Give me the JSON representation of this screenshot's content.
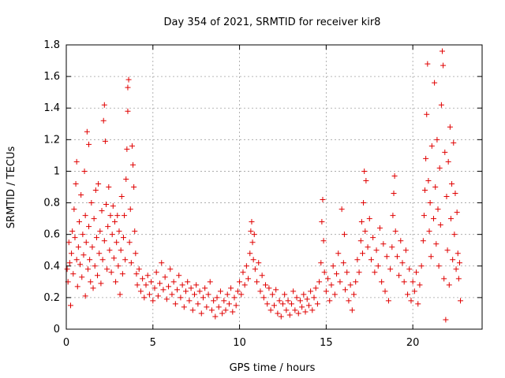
{
  "chart_data": {
    "type": "scatter",
    "title": "Day 354 of 2021, SRMTID for receiver kir8",
    "xlabel": "GPS time / hours",
    "ylabel": "SRMTID / TECUs",
    "xlim": [
      0,
      24
    ],
    "ylim": [
      0,
      1.8
    ],
    "xticks": [
      0,
      5,
      10,
      15,
      20
    ],
    "yticks": [
      0,
      0.2,
      0.4,
      0.6,
      0.8,
      1,
      1.2,
      1.4,
      1.6,
      1.8
    ],
    "ytick_labels": [
      "0",
      "0.2",
      "0.4",
      "0.6",
      "0.8",
      "1",
      "1.2",
      "1.4",
      "1.6",
      "1.8"
    ],
    "grid": true,
    "marker": "+",
    "marker_color": "#e00000",
    "series": [
      {
        "name": "SRMTID",
        "points": [
          [
            0.05,
            0.38
          ],
          [
            0.1,
            0.3
          ],
          [
            0.15,
            0.55
          ],
          [
            0.2,
            0.42
          ],
          [
            0.25,
            0.15
          ],
          [
            0.3,
            0.48
          ],
          [
            0.35,
            0.62
          ],
          [
            0.4,
            0.35
          ],
          [
            0.45,
            0.76
          ],
          [
            0.5,
            0.58
          ],
          [
            0.55,
            0.92
          ],
          [
            0.6,
            0.44
          ],
          [
            0.6,
            1.06
          ],
          [
            0.65,
            0.27
          ],
          [
            0.7,
            0.52
          ],
          [
            0.75,
            0.68
          ],
          [
            0.8,
            0.41
          ],
          [
            0.85,
            0.85
          ],
          [
            0.9,
            0.33
          ],
          [
            0.95,
            0.6
          ],
          [
            1.0,
            0.47
          ],
          [
            1.05,
            1.0
          ],
          [
            1.1,
            0.72
          ],
          [
            1.1,
            0.21
          ],
          [
            1.15,
            0.55
          ],
          [
            1.2,
            1.25
          ],
          [
            1.25,
            0.38
          ],
          [
            1.3,
            0.65
          ],
          [
            1.3,
            1.17
          ],
          [
            1.35,
            0.44
          ],
          [
            1.4,
            0.3
          ],
          [
            1.45,
            0.8
          ],
          [
            1.5,
            0.52
          ],
          [
            1.55,
            0.26
          ],
          [
            1.6,
            0.7
          ],
          [
            1.65,
            0.4
          ],
          [
            1.7,
            0.88
          ],
          [
            1.75,
            0.58
          ],
          [
            1.8,
            0.34
          ],
          [
            1.85,
            0.92
          ],
          [
            1.9,
            0.48
          ],
          [
            1.95,
            0.62
          ],
          [
            2.0,
            0.29
          ],
          [
            2.05,
            0.75
          ],
          [
            2.1,
            0.44
          ],
          [
            2.15,
            1.32
          ],
          [
            2.2,
            1.42
          ],
          [
            2.2,
            0.56
          ],
          [
            2.25,
            1.19
          ],
          [
            2.3,
            0.79
          ],
          [
            2.35,
            0.38
          ],
          [
            2.4,
            0.65
          ],
          [
            2.45,
            0.9
          ],
          [
            2.5,
            0.5
          ],
          [
            2.55,
            0.72
          ],
          [
            2.6,
            0.36
          ],
          [
            2.65,
            0.6
          ],
          [
            2.7,
            0.78
          ],
          [
            2.75,
            0.45
          ],
          [
            2.8,
            0.68
          ],
          [
            2.85,
            0.3
          ],
          [
            2.9,
            0.55
          ],
          [
            2.95,
            0.72
          ],
          [
            3.0,
            0.4
          ],
          [
            3.05,
            0.62
          ],
          [
            3.1,
            0.22
          ],
          [
            3.15,
            0.5
          ],
          [
            3.2,
            0.84
          ],
          [
            3.25,
            0.35
          ],
          [
            3.3,
            0.58
          ],
          [
            3.35,
            0.72
          ],
          [
            3.4,
            0.44
          ],
          [
            3.45,
            0.95
          ],
          [
            3.5,
            1.14
          ],
          [
            3.55,
            1.38
          ],
          [
            3.55,
            1.53
          ],
          [
            3.6,
            1.58
          ],
          [
            3.65,
            0.55
          ],
          [
            3.7,
            0.76
          ],
          [
            3.75,
            0.42
          ],
          [
            3.8,
            1.16
          ],
          [
            3.85,
            1.04
          ],
          [
            3.9,
            0.9
          ],
          [
            3.95,
            0.62
          ],
          [
            4.0,
            0.48
          ],
          [
            4.05,
            0.35
          ],
          [
            4.1,
            0.28
          ],
          [
            4.2,
            0.38
          ],
          [
            4.3,
            0.24
          ],
          [
            4.4,
            0.32
          ],
          [
            4.5,
            0.2
          ],
          [
            4.6,
            0.28
          ],
          [
            4.7,
            0.34
          ],
          [
            4.8,
            0.22
          ],
          [
            4.9,
            0.3
          ],
          [
            5.0,
            0.18
          ],
          [
            5.1,
            0.26
          ],
          [
            5.2,
            0.36
          ],
          [
            5.3,
            0.21
          ],
          [
            5.4,
            0.29
          ],
          [
            5.5,
            0.42
          ],
          [
            5.6,
            0.25
          ],
          [
            5.7,
            0.33
          ],
          [
            5.8,
            0.19
          ],
          [
            5.9,
            0.27
          ],
          [
            6.0,
            0.38
          ],
          [
            6.1,
            0.22
          ],
          [
            6.2,
            0.3
          ],
          [
            6.3,
            0.16
          ],
          [
            6.4,
            0.25
          ],
          [
            6.5,
            0.34
          ],
          [
            6.6,
            0.2
          ],
          [
            6.7,
            0.28
          ],
          [
            6.8,
            0.14
          ],
          [
            6.9,
            0.24
          ],
          [
            7.0,
            0.3
          ],
          [
            7.1,
            0.18
          ],
          [
            7.2,
            0.26
          ],
          [
            7.3,
            0.12
          ],
          [
            7.4,
            0.22
          ],
          [
            7.5,
            0.28
          ],
          [
            7.6,
            0.16
          ],
          [
            7.7,
            0.24
          ],
          [
            7.8,
            0.1
          ],
          [
            7.9,
            0.2
          ],
          [
            8.0,
            0.26
          ],
          [
            8.1,
            0.14
          ],
          [
            8.2,
            0.22
          ],
          [
            8.3,
            0.3
          ],
          [
            8.4,
            0.12
          ],
          [
            8.5,
            0.18
          ],
          [
            8.6,
            0.08
          ],
          [
            8.7,
            0.2
          ],
          [
            8.8,
            0.14
          ],
          [
            8.9,
            0.24
          ],
          [
            9.0,
            0.1
          ],
          [
            9.1,
            0.18
          ],
          [
            9.2,
            0.12
          ],
          [
            9.3,
            0.22
          ],
          [
            9.4,
            0.16
          ],
          [
            9.5,
            0.26
          ],
          [
            9.6,
            0.11
          ],
          [
            9.7,
            0.2
          ],
          [
            9.8,
            0.15
          ],
          [
            9.9,
            0.24
          ],
          [
            10.0,
            0.3
          ],
          [
            10.1,
            0.22
          ],
          [
            10.2,
            0.36
          ],
          [
            10.3,
            0.28
          ],
          [
            10.4,
            0.4
          ],
          [
            10.5,
            0.32
          ],
          [
            10.6,
            0.48
          ],
          [
            10.65,
            0.62
          ],
          [
            10.7,
            0.68
          ],
          [
            10.75,
            0.55
          ],
          [
            10.8,
            0.44
          ],
          [
            10.85,
            0.6
          ],
          [
            10.9,
            0.38
          ],
          [
            11.0,
            0.3
          ],
          [
            11.1,
            0.42
          ],
          [
            11.2,
            0.24
          ],
          [
            11.3,
            0.34
          ],
          [
            11.4,
            0.2
          ],
          [
            11.5,
            0.28
          ],
          [
            11.6,
            0.16
          ],
          [
            11.7,
            0.26
          ],
          [
            11.8,
            0.12
          ],
          [
            11.9,
            0.22
          ],
          [
            12.0,
            0.15
          ],
          [
            12.1,
            0.25
          ],
          [
            12.2,
            0.1
          ],
          [
            12.3,
            0.18
          ],
          [
            12.4,
            0.08
          ],
          [
            12.5,
            0.16
          ],
          [
            12.6,
            0.22
          ],
          [
            12.7,
            0.12
          ],
          [
            12.8,
            0.18
          ],
          [
            12.9,
            0.09
          ],
          [
            13.0,
            0.16
          ],
          [
            13.1,
            0.24
          ],
          [
            13.2,
            0.12
          ],
          [
            13.3,
            0.2
          ],
          [
            13.4,
            0.1
          ],
          [
            13.5,
            0.18
          ],
          [
            13.6,
            0.14
          ],
          [
            13.7,
            0.22
          ],
          [
            13.8,
            0.11
          ],
          [
            13.9,
            0.19
          ],
          [
            14.0,
            0.15
          ],
          [
            14.1,
            0.24
          ],
          [
            14.2,
            0.12
          ],
          [
            14.3,
            0.2
          ],
          [
            14.4,
            0.26
          ],
          [
            14.5,
            0.16
          ],
          [
            14.6,
            0.3
          ],
          [
            14.7,
            0.42
          ],
          [
            14.75,
            0.68
          ],
          [
            14.8,
            0.82
          ],
          [
            14.85,
            0.56
          ],
          [
            14.9,
            0.36
          ],
          [
            15.0,
            0.24
          ],
          [
            15.1,
            0.32
          ],
          [
            15.2,
            0.18
          ],
          [
            15.3,
            0.28
          ],
          [
            15.4,
            0.4
          ],
          [
            15.5,
            0.22
          ],
          [
            15.6,
            0.35
          ],
          [
            15.7,
            0.48
          ],
          [
            15.8,
            0.3
          ],
          [
            15.9,
            0.76
          ],
          [
            16.0,
            0.42
          ],
          [
            16.05,
            0.6
          ],
          [
            16.1,
            0.25
          ],
          [
            16.2,
            0.36
          ],
          [
            16.3,
            0.18
          ],
          [
            16.4,
            0.28
          ],
          [
            16.5,
            0.12
          ],
          [
            16.6,
            0.22
          ],
          [
            16.7,
            0.3
          ],
          [
            16.8,
            0.44
          ],
          [
            16.9,
            0.36
          ],
          [
            17.0,
            0.56
          ],
          [
            17.05,
            0.68
          ],
          [
            17.1,
            0.48
          ],
          [
            17.15,
            0.8
          ],
          [
            17.2,
            1.0
          ],
          [
            17.25,
            0.62
          ],
          [
            17.3,
            0.94
          ],
          [
            17.4,
            0.52
          ],
          [
            17.5,
            0.7
          ],
          [
            17.6,
            0.44
          ],
          [
            17.7,
            0.58
          ],
          [
            17.8,
            0.36
          ],
          [
            17.9,
            0.5
          ],
          [
            18.0,
            0.4
          ],
          [
            18.1,
            0.64
          ],
          [
            18.2,
            0.3
          ],
          [
            18.3,
            0.54
          ],
          [
            18.4,
            0.24
          ],
          [
            18.5,
            0.46
          ],
          [
            18.6,
            0.18
          ],
          [
            18.7,
            0.38
          ],
          [
            18.8,
            0.52
          ],
          [
            18.85,
            0.72
          ],
          [
            18.9,
            0.86
          ],
          [
            18.95,
            0.97
          ],
          [
            19.0,
            0.62
          ],
          [
            19.1,
            0.46
          ],
          [
            19.2,
            0.34
          ],
          [
            19.3,
            0.56
          ],
          [
            19.4,
            0.42
          ],
          [
            19.5,
            0.3
          ],
          [
            19.6,
            0.5
          ],
          [
            19.7,
            0.22
          ],
          [
            19.8,
            0.38
          ],
          [
            19.9,
            0.18
          ],
          [
            20.0,
            0.3
          ],
          [
            20.1,
            0.24
          ],
          [
            20.2,
            0.36
          ],
          [
            20.3,
            0.16
          ],
          [
            20.4,
            0.28
          ],
          [
            20.5,
            0.4
          ],
          [
            20.6,
            0.56
          ],
          [
            20.65,
            0.72
          ],
          [
            20.7,
            0.88
          ],
          [
            20.75,
            1.08
          ],
          [
            20.8,
            1.36
          ],
          [
            20.85,
            1.68
          ],
          [
            20.9,
            0.94
          ],
          [
            20.95,
            0.62
          ],
          [
            21.0,
            0.8
          ],
          [
            21.05,
            0.46
          ],
          [
            21.1,
            1.16
          ],
          [
            21.2,
            0.7
          ],
          [
            21.25,
            1.56
          ],
          [
            21.3,
            0.9
          ],
          [
            21.35,
            0.54
          ],
          [
            21.4,
            1.2
          ],
          [
            21.45,
            0.76
          ],
          [
            21.5,
            0.4
          ],
          [
            21.55,
            1.02
          ],
          [
            21.6,
            0.66
          ],
          [
            21.65,
            1.42
          ],
          [
            21.7,
            1.76
          ],
          [
            21.75,
            1.67
          ],
          [
            21.8,
            0.32
          ],
          [
            21.85,
            1.12
          ],
          [
            21.9,
            0.06
          ],
          [
            21.95,
            0.84
          ],
          [
            22.0,
            0.5
          ],
          [
            22.05,
            1.06
          ],
          [
            22.1,
            0.28
          ],
          [
            22.15,
            1.28
          ],
          [
            22.2,
            0.7
          ],
          [
            22.25,
            0.92
          ],
          [
            22.3,
            0.44
          ],
          [
            22.35,
            1.18
          ],
          [
            22.4,
            0.6
          ],
          [
            22.45,
            0.86
          ],
          [
            22.5,
            0.38
          ],
          [
            22.55,
            0.74
          ],
          [
            22.6,
            0.48
          ],
          [
            22.65,
            0.32
          ],
          [
            22.7,
            0.42
          ],
          [
            22.75,
            0.18
          ]
        ]
      }
    ]
  }
}
